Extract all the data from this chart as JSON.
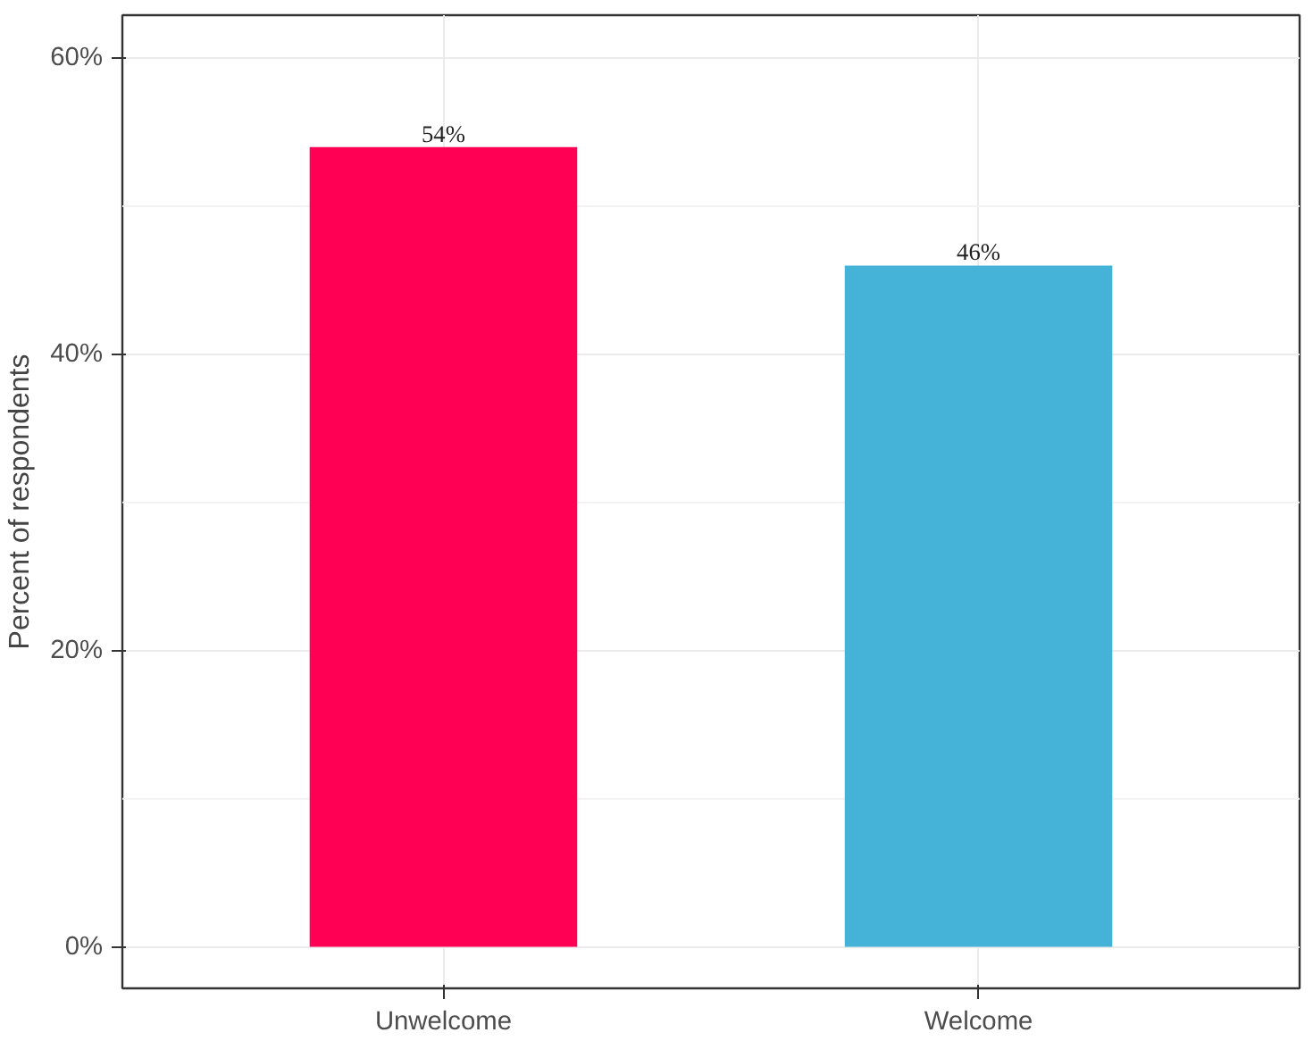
{
  "chart_data": {
    "type": "bar",
    "ylabel": "Percent of respondents",
    "categories": [
      "Unwelcome",
      "Welcome"
    ],
    "values": [
      54,
      46
    ],
    "colors": [
      "#ff0055",
      "#45b3d8"
    ],
    "value_labels": [
      "54%",
      "46%"
    ],
    "ylim": [
      -2.8,
      62.9
    ],
    "yticks": [
      {
        "value": 0,
        "label": "0%"
      },
      {
        "value": 20,
        "label": "20%"
      },
      {
        "value": 40,
        "label": "40%"
      },
      {
        "value": 60,
        "label": "60%"
      }
    ],
    "grid": true
  }
}
